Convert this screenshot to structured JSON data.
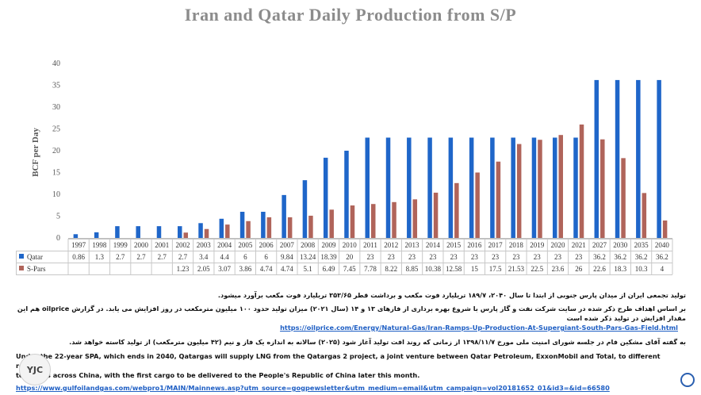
{
  "title": "Iran and Qatar Daily Production from S/P",
  "chart_data": {
    "type": "bar",
    "ylabel": "BCF per Day",
    "ylim": [
      0,
      40
    ],
    "yticks": [
      0,
      5,
      10,
      15,
      20,
      25,
      30,
      35,
      40
    ],
    "categories": [
      "1997",
      "1998",
      "1999",
      "2000",
      "2001",
      "2002",
      "2003",
      "2004",
      "2005",
      "2006",
      "2007",
      "2008",
      "2009",
      "2010",
      "2011",
      "2012",
      "2013",
      "2014",
      "2015",
      "2016",
      "2017",
      "2018",
      "2019",
      "2020",
      "2021",
      "2027",
      "2030",
      "2035",
      "2040"
    ],
    "series": [
      {
        "name": "Qatar",
        "color": "#1f66c9",
        "values": [
          0.86,
          1.3,
          2.7,
          2.7,
          2.7,
          2.7,
          3.4,
          4.4,
          6,
          6,
          9.84,
          13.24,
          18.39,
          20,
          23,
          23,
          23,
          23,
          23,
          23,
          23,
          23,
          23,
          23,
          23,
          36.2,
          36.2,
          36.2,
          36.2
        ],
        "labels": [
          "0.86",
          "1.3",
          "2.7",
          "2.7",
          "2.7",
          "2.7",
          "3.4",
          "4.4",
          "6",
          "6",
          "9.84",
          "13.24",
          "18.39",
          "20",
          "23",
          "23",
          "23",
          "23",
          "23",
          "23",
          "23",
          "23",
          "23",
          "23",
          "23",
          "36.2",
          "36.2",
          "36.2",
          "36.2"
        ]
      },
      {
        "name": "S-Pars",
        "color": "#b0645a",
        "values": [
          null,
          null,
          null,
          null,
          null,
          1.23,
          2.05,
          3.07,
          3.86,
          4.74,
          4.74,
          5.1,
          6.49,
          7.45,
          7.78,
          8.22,
          8.85,
          10.38,
          12.58,
          15,
          17.5,
          21.53,
          22.5,
          23.6,
          26,
          22.6,
          18.3,
          10.3,
          4
        ],
        "labels": [
          "",
          "",
          "",
          "",
          "",
          "1.23",
          "2.05",
          "3.07",
          "3.86",
          "4.74",
          "4.74",
          "5.1",
          "6.49",
          "7.45",
          "7.78",
          "8.22",
          "8.85",
          "10.38",
          "12.58",
          "15",
          "17.5",
          "21.53",
          "22.5",
          "23.6",
          "26",
          "22.6",
          "18.3",
          "10.3",
          "4"
        ]
      }
    ],
    "legend": "table-below",
    "grid": false
  },
  "notes": {
    "fa_line1": "تولید تجمعی ایران از میدان پارس جنوبی از ابتدا تا سال ۲۰۴۰، ۱۸۹/۷ تریلیارد فوت مکعب و برداشت قطر ۳۵۳/۶۵ تریلیارد فوت مکعب برآورد میشود.",
    "fa_line2": "بر اساس اهداف طرح ذکر شده در سایت شرکت نفت و گاز پارس با شروع بهره برداری از فازهای ۱۳ و ۱۴ (سال ۲۰۲۱) میزان تولید حدود ۱۰۰ میلیون مترمکعب در روز افزایش می یابد. در گزارش oilprice هم این مقدار افزایش در تولید ذکر شده است",
    "link1": "https://oilprice.com/Energy/Natural-Gas/Iran-Ramps-Up-Production-At-Supergiant-South-Pars-Gas-Field.html",
    "fa_line3": "به گفته آقای مشکین فام در جلسه شورای امنیت ملی مورخ ۱۳۹۸/۱۱/۷ از زمانی که روند افت تولید آغاز شود (۲۰۲۵) سالانه به اندازه یک فاز و نیم (۴۲ میلیون مترمکعب) از تولید کاسته خواهد شد.",
    "en_line1": "Under the 22-year SPA, which ends in 2040, Qatargas will supply LNG from the Qatargas 2 project, a joint venture between Qatar Petroleum, ExxonMobil and Total, to different receiving",
    "en_line2": "terminals across China, with the first cargo to be delivered to the People's Republic of China later this month.",
    "link2": "https://www.gulfoilandgas.com/webpro1/MAIN/Mainnews.asp?utm_source=gogpewsletter&utm_medium=email&utm_campaign=vol20181652_01&id3=&id=66580"
  },
  "logo_text": "YJC"
}
